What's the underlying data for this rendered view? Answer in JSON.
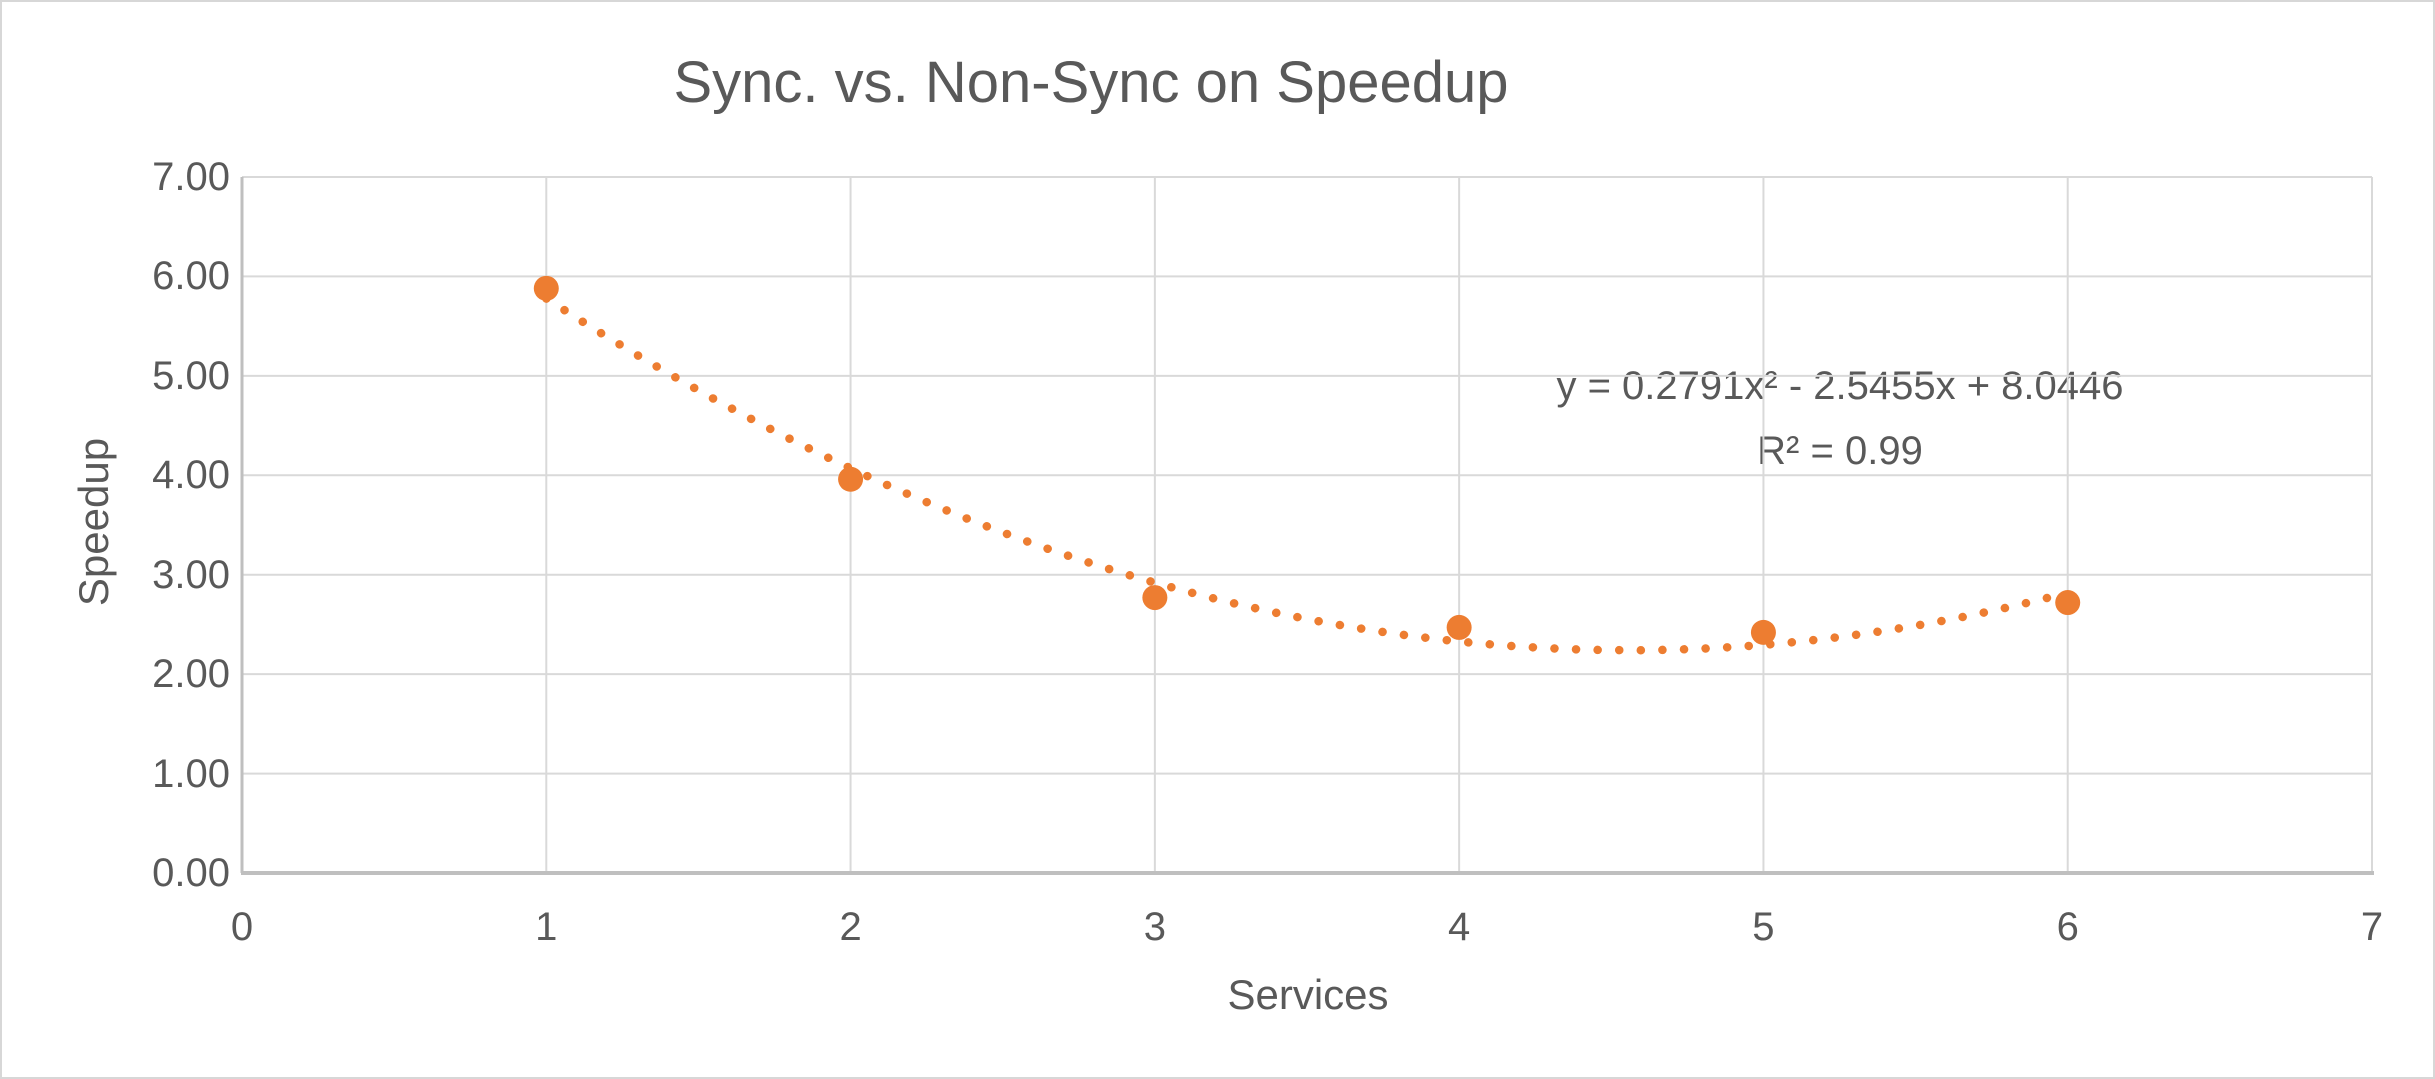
{
  "chart_data": {
    "type": "scatter",
    "title": "Sync. vs. Non-Sync on Speedup",
    "xlabel": "Services",
    "ylabel": "Speedup",
    "x": [
      1,
      2,
      3,
      4,
      5,
      6
    ],
    "y": [
      5.88,
      3.96,
      2.77,
      2.47,
      2.42,
      2.72
    ],
    "xlim": [
      0,
      7
    ],
    "ylim": [
      0,
      7
    ],
    "x_tick_labels": [
      "0",
      "1",
      "2",
      "3",
      "4",
      "5",
      "6",
      "7"
    ],
    "y_tick_labels": [
      "0.00",
      "1.00",
      "2.00",
      "3.00",
      "4.00",
      "5.00",
      "6.00",
      "7.00"
    ],
    "grid": true,
    "legend": false,
    "trendline": {
      "type": "polynomial",
      "order": 2,
      "coefficients": {
        "a": 0.2791,
        "b": -2.5455,
        "c": 8.0446
      },
      "label": "y = 0.2791x² - 2.5455x + 8.0446",
      "r_squared_label": "R² = 0.99",
      "range": [
        1,
        6
      ],
      "style": "dotted"
    },
    "colors": {
      "marker": "#ED7D31",
      "trendline": "#ED7D31",
      "gridline": "#D9D9D9",
      "axis_line": "#BFBFBF",
      "text": "#595959",
      "background": "#FFFFFF",
      "border": "#D7D7D7"
    }
  }
}
